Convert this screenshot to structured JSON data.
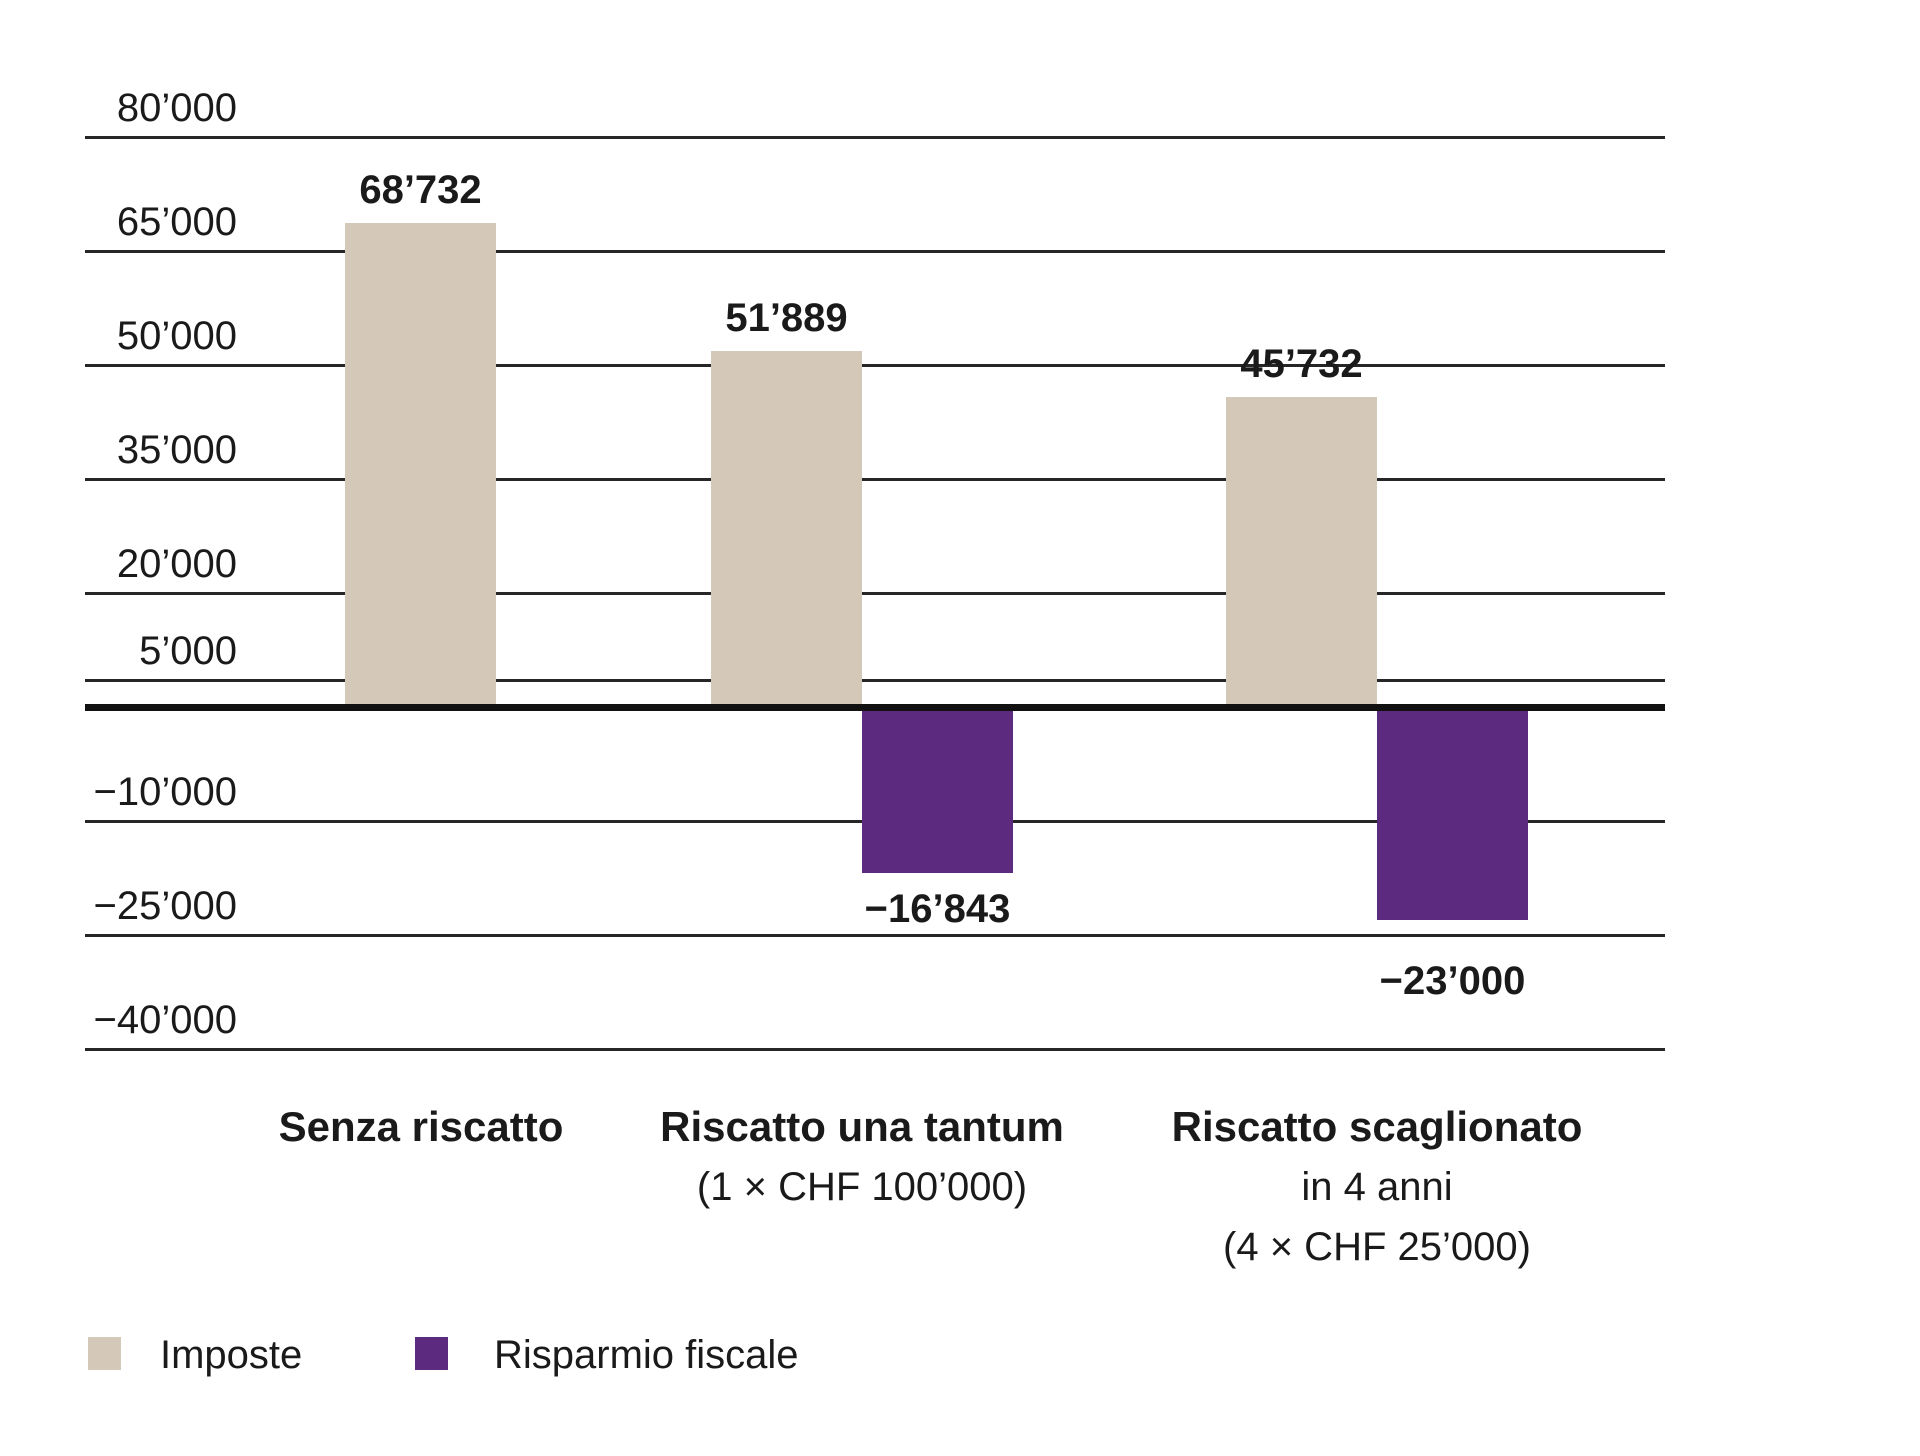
{
  "chart_data": {
    "type": "bar",
    "title": "",
    "xlabel": "",
    "ylabel": "",
    "grid": true,
    "y_axis": {
      "range": [
        -40000,
        80000
      ],
      "tick_values": [
        80000,
        65000,
        50000,
        35000,
        20000,
        5000,
        -10000,
        -25000,
        -40000
      ],
      "tick_labels": [
        "80’000",
        "65’000",
        "50’000",
        "35’000",
        "20’000",
        "5’000",
        "−10’000",
        "−25’000",
        "−40’000"
      ]
    },
    "categories": [
      {
        "lines": [
          "Senza riscatto"
        ]
      },
      {
        "lines": [
          "Riscatto una tantum",
          "(1 × CHF 100’000)"
        ]
      },
      {
        "lines": [
          "Riscatto scaglionato",
          "in 4 anni",
          "(4 × CHF 25’000)"
        ]
      }
    ],
    "series": [
      {
        "name": "Imposte",
        "color": "#d4c8b8",
        "values": [
          68732,
          51889,
          45732
        ],
        "value_labels": [
          "68’732",
          "51’889",
          "45’732"
        ]
      },
      {
        "name": "Risparmio fiscale",
        "color": "#5c2b7f",
        "values": [
          null,
          -16843,
          -23000
        ],
        "value_labels": [
          null,
          "−16’843",
          "−23’000"
        ]
      }
    ],
    "legend": {
      "position": "bottom-left",
      "items": [
        {
          "label": "Imposte",
          "color": "#d4c8b8"
        },
        {
          "label": "Risparmio fiscale",
          "color": "#5c2b7f"
        }
      ]
    },
    "colors": {
      "grid": "#262626",
      "zero_axis": "#111111",
      "text": "#1a1a1a",
      "background": "#ffffff"
    }
  }
}
